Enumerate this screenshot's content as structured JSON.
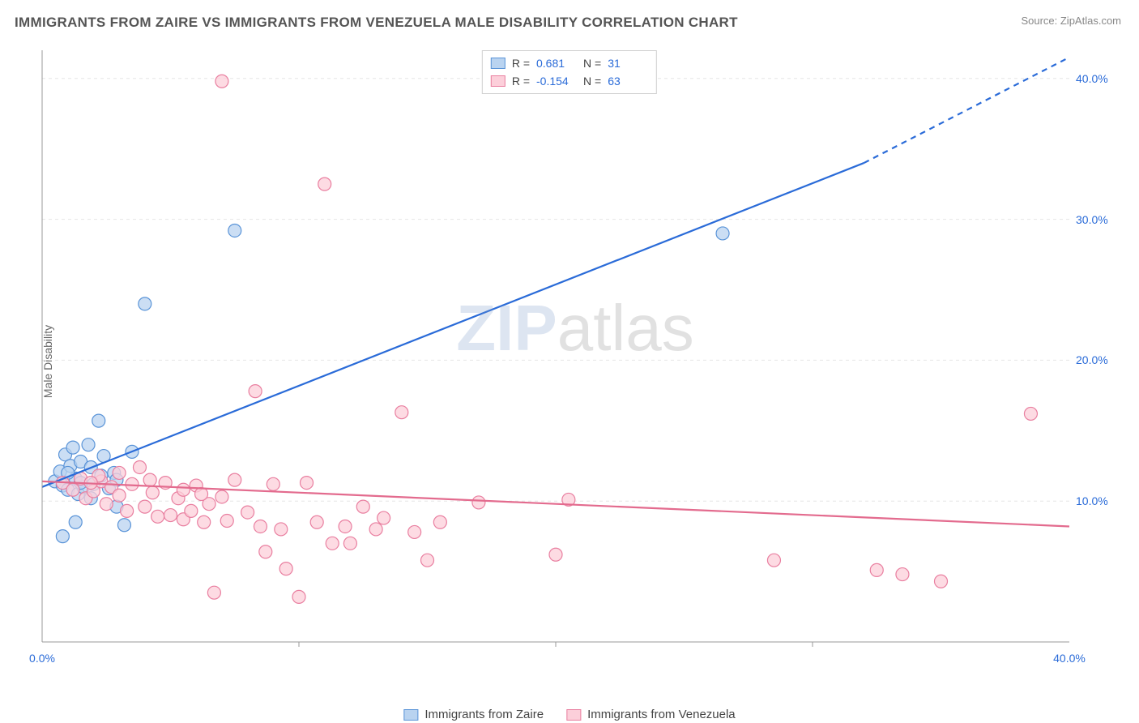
{
  "title": "IMMIGRANTS FROM ZAIRE VS IMMIGRANTS FROM VENEZUELA MALE DISABILITY CORRELATION CHART",
  "source": "Source: ZipAtlas.com",
  "ylabel": "Male Disability",
  "watermark": {
    "z": "ZIP",
    "rest": "atlas"
  },
  "chart": {
    "type": "scatter",
    "xlim": [
      0,
      40
    ],
    "ylim": [
      0,
      42
    ],
    "x_ticks": [
      0,
      40
    ],
    "x_tick_labels": [
      "0.0%",
      "40.0%"
    ],
    "y_ticks": [
      10,
      20,
      30,
      40
    ],
    "y_tick_labels": [
      "10.0%",
      "20.0%",
      "30.0%",
      "40.0%"
    ],
    "grid_color": "#e6e6e6",
    "axis_line_color": "#999",
    "background_color": "#ffffff",
    "minor_x_gridlines": [
      10,
      20,
      30
    ],
    "marker_radius": 8,
    "marker_stroke_width": 1.2,
    "line_width": 2.2,
    "series": [
      {
        "name": "Immigrants from Zaire",
        "key": "zaire",
        "fill": "#b9d3f0",
        "stroke": "#5a94d8",
        "line_color": "#2a6bd8",
        "R": "0.681",
        "N": "31",
        "trend": {
          "x1": 0,
          "y1": 11.0,
          "x2": 32,
          "y2": 34.0,
          "dash_from_x": 32,
          "dash_to_x": 40,
          "dash_to_y": 41.5
        },
        "points": [
          [
            0.5,
            11.4
          ],
          [
            0.7,
            12.1
          ],
          [
            0.8,
            11.1
          ],
          [
            0.9,
            13.3
          ],
          [
            1.0,
            10.8
          ],
          [
            1.1,
            12.5
          ],
          [
            1.2,
            13.8
          ],
          [
            1.3,
            11.6
          ],
          [
            1.4,
            10.5
          ],
          [
            1.5,
            12.8
          ],
          [
            1.6,
            11.0
          ],
          [
            1.8,
            14.0
          ],
          [
            1.9,
            12.4
          ],
          [
            2.0,
            11.2
          ],
          [
            2.2,
            15.7
          ],
          [
            2.4,
            13.2
          ],
          [
            2.6,
            10.9
          ],
          [
            2.8,
            12.0
          ],
          [
            2.9,
            11.5
          ],
          [
            3.5,
            13.5
          ],
          [
            4.0,
            24.0
          ],
          [
            1.3,
            8.5
          ],
          [
            2.9,
            9.6
          ],
          [
            0.8,
            7.5
          ],
          [
            3.2,
            8.3
          ],
          [
            7.5,
            29.2
          ],
          [
            1.9,
            10.2
          ],
          [
            2.3,
            11.8
          ],
          [
            1.0,
            12.0
          ],
          [
            1.5,
            11.3
          ],
          [
            26.5,
            29.0
          ]
        ]
      },
      {
        "name": "Immigrants from Venezuela",
        "key": "venezuela",
        "fill": "#fccfda",
        "stroke": "#e97fa0",
        "line_color": "#e36b8e",
        "R": "-0.154",
        "N": "63",
        "trend": {
          "x1": 0,
          "y1": 11.4,
          "x2": 40,
          "y2": 8.2
        },
        "points": [
          [
            0.8,
            11.3
          ],
          [
            1.2,
            10.8
          ],
          [
            1.5,
            11.6
          ],
          [
            1.7,
            10.2
          ],
          [
            2.0,
            10.7
          ],
          [
            2.3,
            11.4
          ],
          [
            2.5,
            9.8
          ],
          [
            2.7,
            11.0
          ],
          [
            3.0,
            10.4
          ],
          [
            3.3,
            9.3
          ],
          [
            3.5,
            11.2
          ],
          [
            3.8,
            12.4
          ],
          [
            4.0,
            9.6
          ],
          [
            4.3,
            10.6
          ],
          [
            4.5,
            8.9
          ],
          [
            4.8,
            11.3
          ],
          [
            5.0,
            9.0
          ],
          [
            5.3,
            10.2
          ],
          [
            5.5,
            8.7
          ],
          [
            5.8,
            9.3
          ],
          [
            6.0,
            11.1
          ],
          [
            6.3,
            8.5
          ],
          [
            6.5,
            9.8
          ],
          [
            6.7,
            3.5
          ],
          [
            7.0,
            10.3
          ],
          [
            7.2,
            8.6
          ],
          [
            7.5,
            11.5
          ],
          [
            8.0,
            9.2
          ],
          [
            8.3,
            17.8
          ],
          [
            8.5,
            8.2
          ],
          [
            8.7,
            6.4
          ],
          [
            9.0,
            11.2
          ],
          [
            9.3,
            8.0
          ],
          [
            9.5,
            5.2
          ],
          [
            10.0,
            3.2
          ],
          [
            10.3,
            11.3
          ],
          [
            10.7,
            8.5
          ],
          [
            11.0,
            32.5
          ],
          [
            11.3,
            7.0
          ],
          [
            11.8,
            8.2
          ],
          [
            12.0,
            7.0
          ],
          [
            12.5,
            9.6
          ],
          [
            13.0,
            8.0
          ],
          [
            13.3,
            8.8
          ],
          [
            14.0,
            16.3
          ],
          [
            14.5,
            7.8
          ],
          [
            15.0,
            5.8
          ],
          [
            15.5,
            8.5
          ],
          [
            17.0,
            9.9
          ],
          [
            20.0,
            6.2
          ],
          [
            20.5,
            10.1
          ],
          [
            28.5,
            5.8
          ],
          [
            7.0,
            39.8
          ],
          [
            32.5,
            5.1
          ],
          [
            33.5,
            4.8
          ],
          [
            35.0,
            4.3
          ],
          [
            38.5,
            16.2
          ],
          [
            2.2,
            11.8
          ],
          [
            4.2,
            11.5
          ],
          [
            3.0,
            12.0
          ],
          [
            5.5,
            10.8
          ],
          [
            1.9,
            11.3
          ],
          [
            6.2,
            10.5
          ]
        ]
      }
    ]
  },
  "legend_bottom": [
    {
      "label": "Immigrants from Zaire",
      "fill": "#b9d3f0",
      "stroke": "#5a94d8"
    },
    {
      "label": "Immigrants from Venezuela",
      "fill": "#fccfda",
      "stroke": "#e97fa0"
    }
  ]
}
